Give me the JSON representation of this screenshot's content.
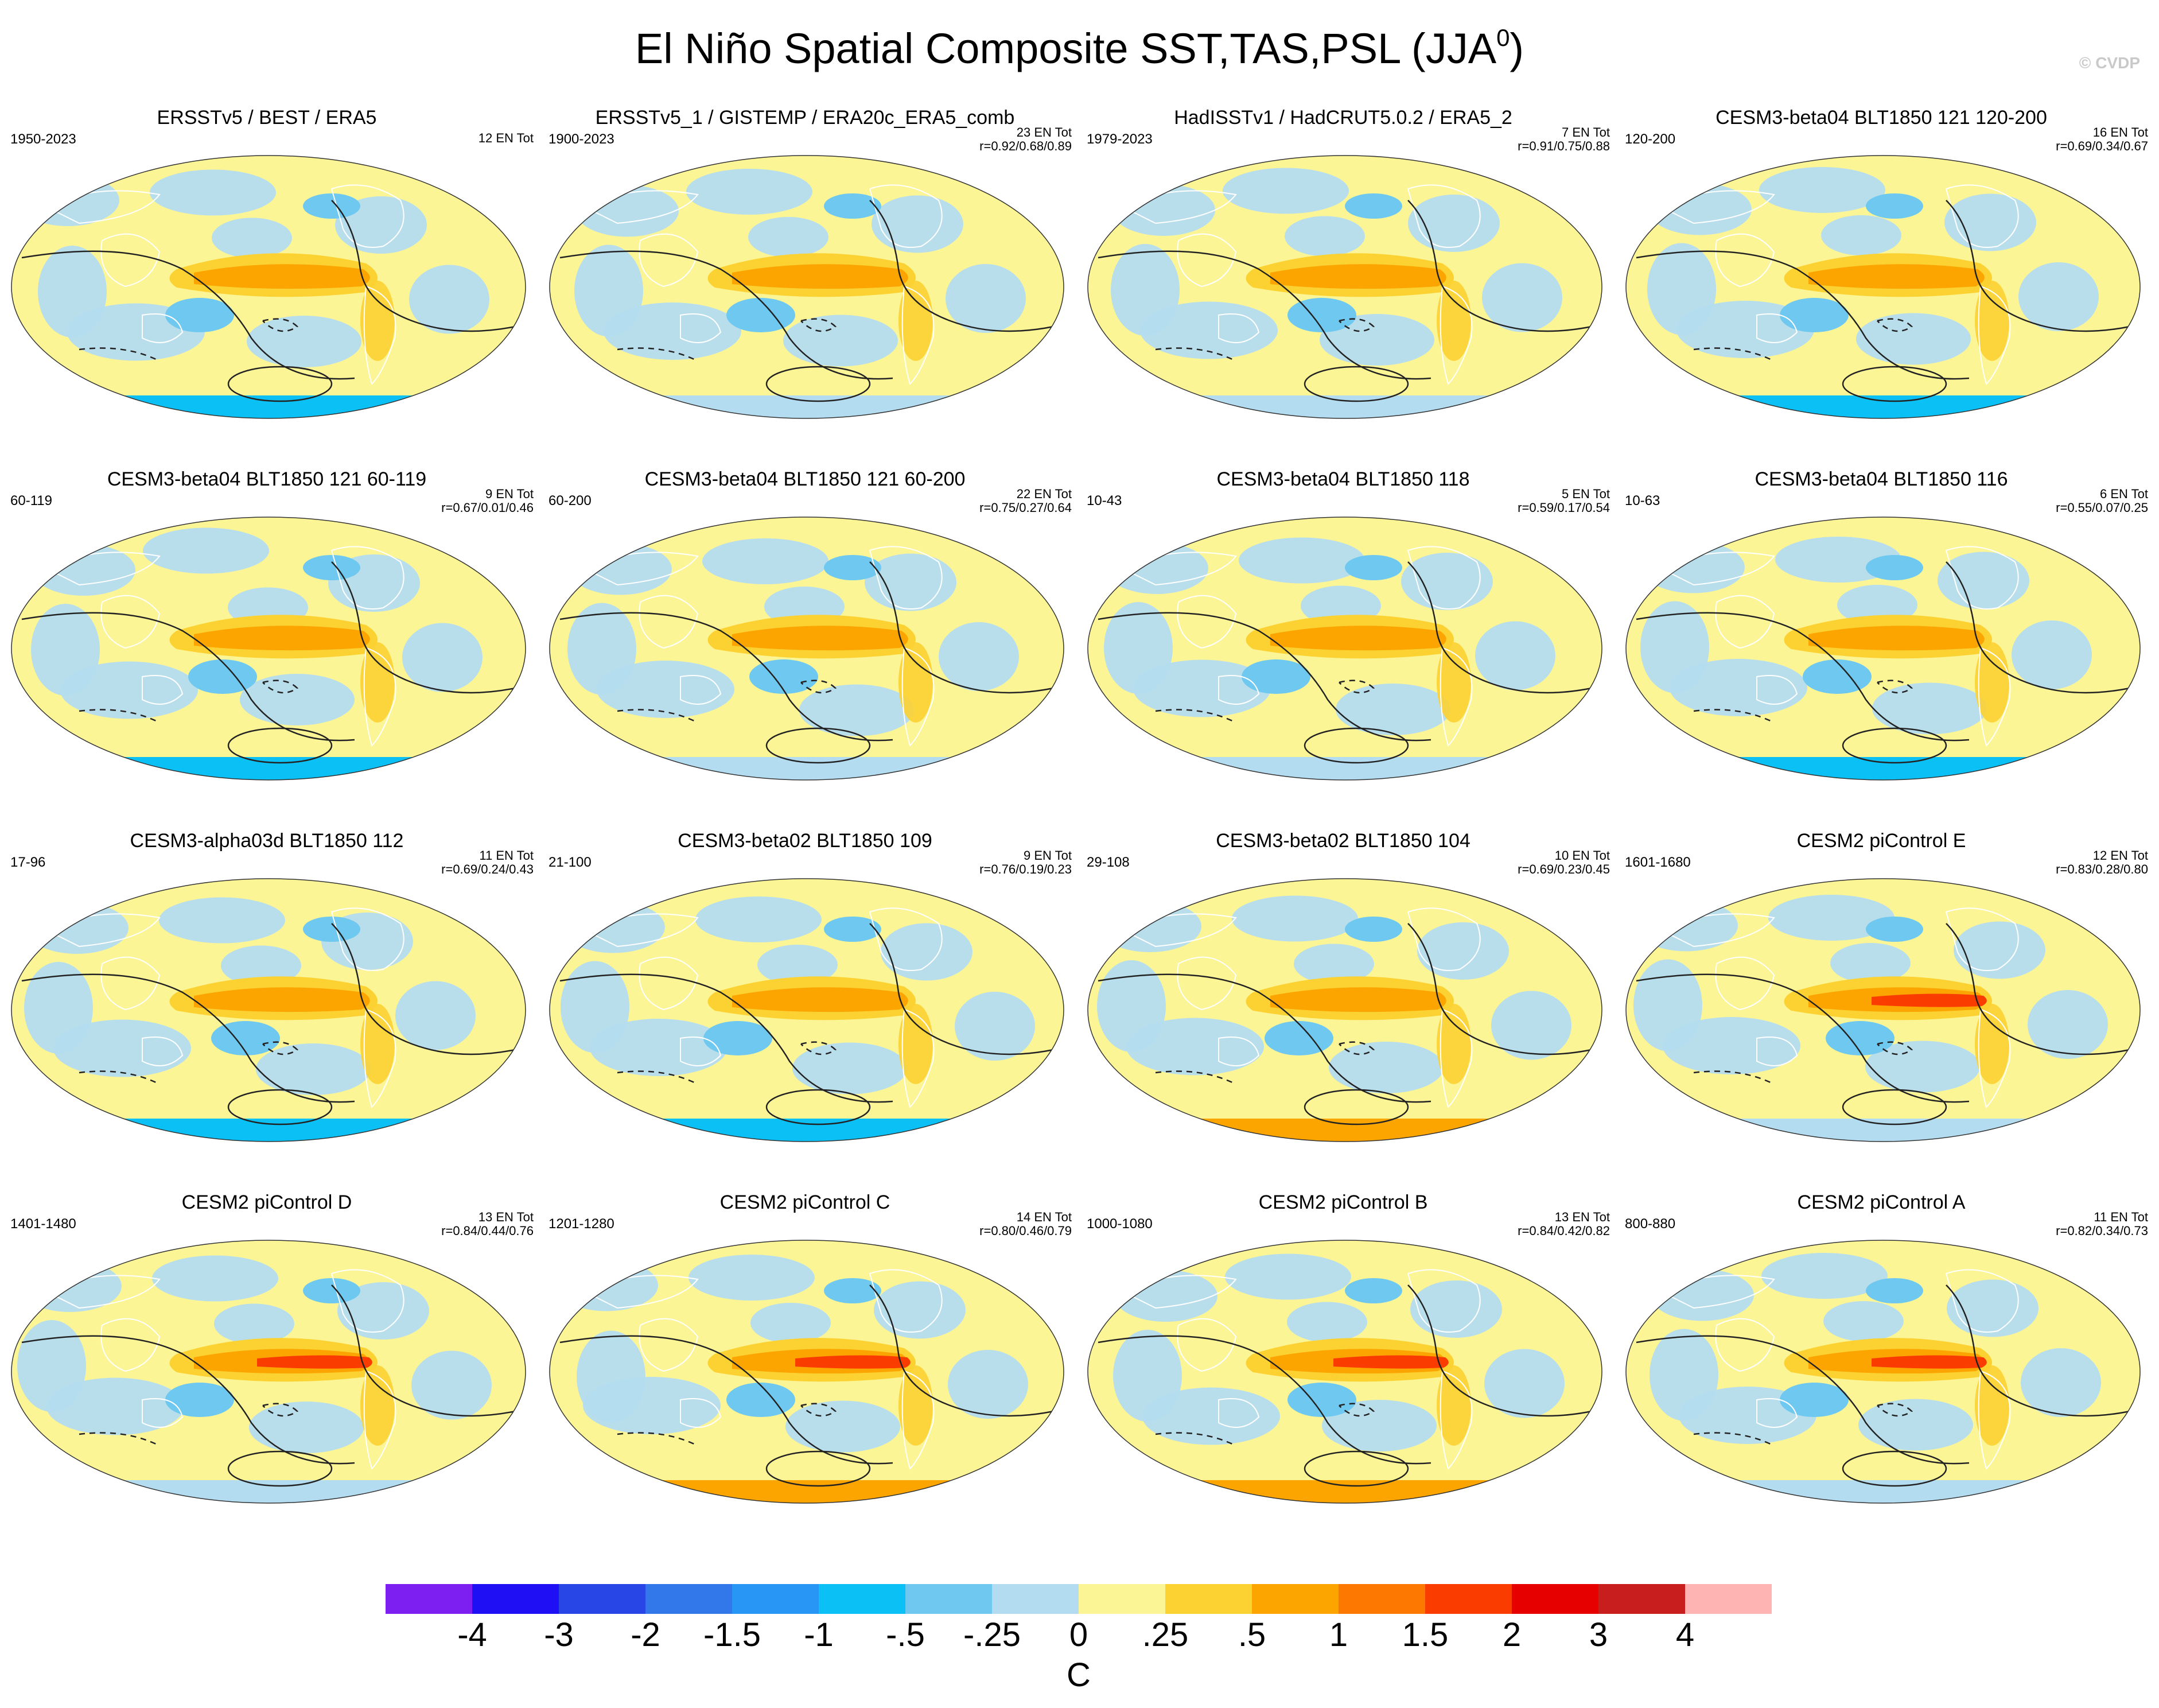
{
  "title_main": "El Niño Spatial Composite SST,TAS,PSL (JJA",
  "title_sup": "0",
  "title_end": ")",
  "copyright": "© CVDP",
  "panels": [
    {
      "title": "ERSSTv5 / BEST / ERA5",
      "years": "1950-2023",
      "count": "12 EN Tot",
      "corr": ""
    },
    {
      "title": "ERSSTv5_1 / GISTEMP / ERA20c_ERA5_comb",
      "years": "1900-2023",
      "count": "23 EN Tot",
      "corr": "r=0.92/0.68/0.89"
    },
    {
      "title": "HadISSTv1 / HadCRUT5.0.2 / ERA5_2",
      "years": "1979-2023",
      "count": "7 EN Tot",
      "corr": "r=0.91/0.75/0.88"
    },
    {
      "title": "CESM3-beta04 BLT1850 121 120-200",
      "years": "120-200",
      "count": "16 EN Tot",
      "corr": "r=0.69/0.34/0.67"
    },
    {
      "title": "CESM3-beta04 BLT1850 121 60-119",
      "years": "60-119",
      "count": "9 EN Tot",
      "corr": "r=0.67/0.01/0.46"
    },
    {
      "title": "CESM3-beta04 BLT1850 121 60-200",
      "years": "60-200",
      "count": "22 EN Tot",
      "corr": "r=0.75/0.27/0.64"
    },
    {
      "title": "CESM3-beta04 BLT1850 118",
      "years": "10-43",
      "count": "5 EN Tot",
      "corr": "r=0.59/0.17/0.54"
    },
    {
      "title": "CESM3-beta04 BLT1850 116",
      "years": "10-63",
      "count": "6 EN Tot",
      "corr": "r=0.55/0.07/0.25"
    },
    {
      "title": "CESM3-alpha03d BLT1850 112",
      "years": "17-96",
      "count": "11 EN Tot",
      "corr": "r=0.69/0.24/0.43"
    },
    {
      "title": "CESM3-beta02 BLT1850 109",
      "years": "21-100",
      "count": "9 EN Tot",
      "corr": "r=0.76/0.19/0.23"
    },
    {
      "title": "CESM3-beta02 BLT1850 104",
      "years": "29-108",
      "count": "10 EN Tot",
      "corr": "r=0.69/0.23/0.45"
    },
    {
      "title": "CESM2 piControl E",
      "years": "1601-1680",
      "count": "12 EN Tot",
      "corr": "r=0.83/0.28/0.80"
    },
    {
      "title": "CESM2 piControl D",
      "years": "1401-1480",
      "count": "13 EN Tot",
      "corr": "r=0.84/0.44/0.76"
    },
    {
      "title": "CESM2 piControl C",
      "years": "1201-1280",
      "count": "14 EN Tot",
      "corr": "r=0.80/0.46/0.79"
    },
    {
      "title": "CESM2 piControl B",
      "years": "1000-1080",
      "count": "13 EN Tot",
      "corr": "r=0.84/0.42/0.82"
    },
    {
      "title": "CESM2 piControl A",
      "years": "800-880",
      "count": "11 EN Tot",
      "corr": "r=0.82/0.34/0.73"
    }
  ],
  "chart_data": {
    "type": "heatmap",
    "title": "El Niño Spatial Composite SST,TAS,PSL (JJA0)",
    "units": "C",
    "colorbar": {
      "levels": [
        "-4",
        "-3",
        "-2",
        "-1.5",
        "-1",
        "-.5",
        "-.25",
        "0",
        ".25",
        ".5",
        "1",
        "1.5",
        "2",
        "3",
        "4"
      ],
      "colors": [
        "#7d1ff0",
        "#1e0ff5",
        "#2846e6",
        "#3278ea",
        "#2896f5",
        "#0ac0f5",
        "#6ec8f0",
        "#b4dcf0",
        "#fcf596",
        "#fcd232",
        "#fca500",
        "#fc7800",
        "#fa3c00",
        "#e60000",
        "#c81e1e",
        "#ffb4b4"
      ]
    },
    "overlay": "PSL contours: solid positive, dashed negative"
  }
}
